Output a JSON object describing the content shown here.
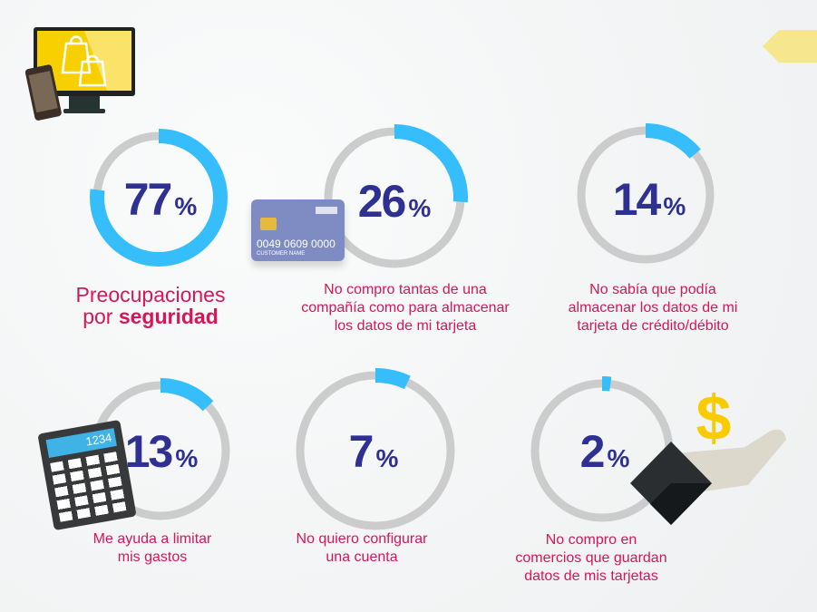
{
  "colors": {
    "accent": "#36bdfc",
    "track": "#cccccc",
    "number": "#2e3192",
    "caption": "#d6165a"
  },
  "chart_data": {
    "type": "pie",
    "variant": "donut-progress",
    "items": [
      {
        "value": 77,
        "unit": "%",
        "label_line1": "Preocupaciones",
        "label_line2a": "por ",
        "label_line2b": "seguridad"
      },
      {
        "value": 26,
        "unit": "%",
        "label": [
          "No compro tantas de una",
          "compañía como para almacenar",
          "los datos de mi tarjeta"
        ]
      },
      {
        "value": 14,
        "unit": "%",
        "label": [
          "No sabía que podía",
          "almacenar los datos de mi",
          "tarjeta de crédito/débito"
        ]
      },
      {
        "value": 13,
        "unit": "%",
        "label": [
          "Me ayuda a limitar",
          "mis gastos"
        ]
      },
      {
        "value": 7,
        "unit": "%",
        "label": [
          "No quiero configurar",
          "una cuenta"
        ]
      },
      {
        "value": 2,
        "unit": "%",
        "label": [
          "No compro en",
          "comercios que guardan",
          "datos de mis tarjetas"
        ]
      }
    ]
  },
  "icons": {
    "card_number": "0049 0609 0000",
    "card_name": "CUSTOMER NAME",
    "calc_display": "1234",
    "dollar": "$"
  }
}
